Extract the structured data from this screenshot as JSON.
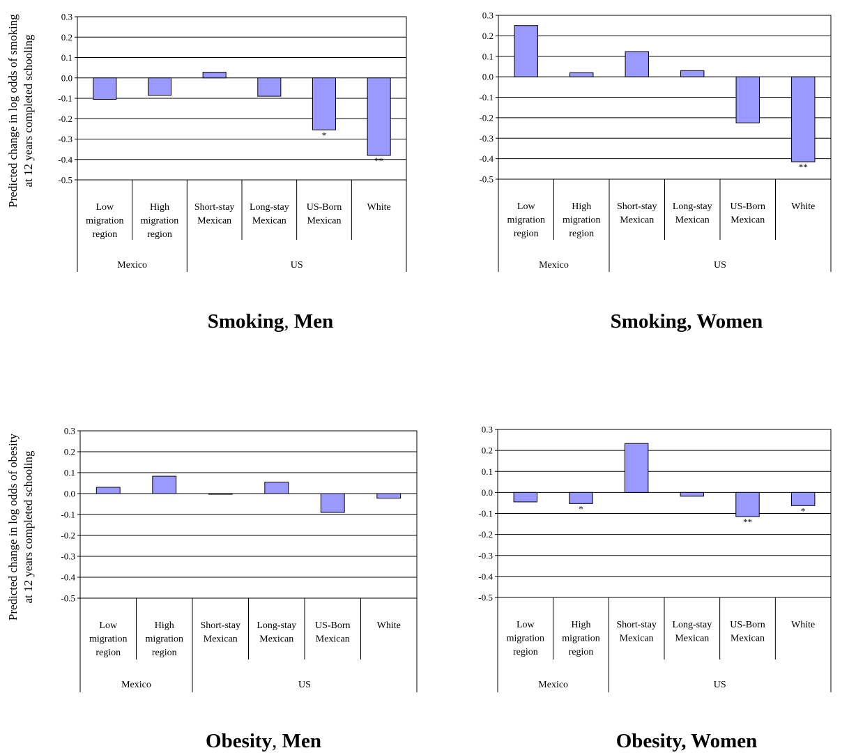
{
  "figure": {
    "bar_fill": "#9999ff",
    "bar_stroke": "#000000",
    "ylabels": {
      "smoking": [
        "Predicted change in log odds of smoking",
        "at 12 years completed schooling"
      ],
      "obesity": [
        "Predicted change in log odds of obesity",
        "at 12 years completed schooling"
      ]
    },
    "category_labels": [
      [
        "Low",
        "migration",
        "region"
      ],
      [
        "High",
        "migration",
        "region"
      ],
      [
        "Short-stay",
        "Mexican"
      ],
      [
        "Long-stay",
        "Mexican"
      ],
      [
        "US-Born",
        "Mexican"
      ],
      [
        "White"
      ]
    ],
    "groups": [
      {
        "label": "Mexico",
        "span": [
          0,
          2
        ]
      },
      {
        "label": "US",
        "span": [
          2,
          6
        ]
      }
    ]
  },
  "chart_data": [
    {
      "type": "bar",
      "title": "Smoking, Men",
      "categories": [
        "Low migration region",
        "High migration region",
        "Short-stay Mexican",
        "Long-stay Mexican",
        "US-Born Mexican",
        "White"
      ],
      "values": [
        -0.105,
        -0.085,
        0.028,
        -0.09,
        -0.255,
        -0.38
      ],
      "significance": [
        "",
        "",
        "",
        "",
        "*",
        "**"
      ],
      "ylim": [
        -0.5,
        0.3
      ],
      "yticks": [
        "0.3",
        "0.2",
        "0.1",
        "0.0",
        "-0.1",
        "-0.2",
        "-0.3",
        "-0.4",
        "-0.5"
      ],
      "ylabel": "Predicted change in log odds of smoking at 12 years completed schooling",
      "grid": true
    },
    {
      "type": "bar",
      "title": "Smoking, Women",
      "categories": [
        "Low migration region",
        "High migration region",
        "Short-stay Mexican",
        "Long-stay Mexican",
        "US-Born Mexican",
        "White"
      ],
      "values": [
        0.25,
        0.02,
        0.123,
        0.03,
        -0.225,
        -0.415
      ],
      "significance": [
        "",
        "",
        "",
        "",
        "",
        "**"
      ],
      "ylim": [
        -0.5,
        0.3
      ],
      "yticks": [
        "0.3",
        "0.2",
        "0.1",
        "0.0",
        "-0.1",
        "-0.2",
        "-0.3",
        "-0.4",
        "-0.5"
      ],
      "ylabel": "",
      "grid": true
    },
    {
      "type": "bar",
      "title": "Obesity, Men",
      "categories": [
        "Low migration region",
        "High migration region",
        "Short-stay Mexican",
        "Long-stay Mexican",
        "US-Born Mexican",
        "White"
      ],
      "values": [
        0.03,
        0.083,
        -0.003,
        0.055,
        -0.09,
        -0.022
      ],
      "significance": [
        "",
        "",
        "",
        "",
        "",
        ""
      ],
      "ylim": [
        -0.5,
        0.3
      ],
      "yticks": [
        "0.3",
        "0.2",
        "0.1",
        "0.0",
        "-0.1",
        "-0.2",
        "-0.3",
        "-0.4",
        "-0.5"
      ],
      "ylabel": "Predicted change in log odds of obesity at 12 years completed schooling",
      "grid": true
    },
    {
      "type": "bar",
      "title": "Obesity, Women",
      "categories": [
        "Low migration region",
        "High migration region",
        "Short-stay Mexican",
        "Long-stay Mexican",
        "US-Born Mexican",
        "White"
      ],
      "values": [
        -0.045,
        -0.053,
        0.233,
        -0.018,
        -0.115,
        -0.063
      ],
      "significance": [
        "",
        "*",
        "",
        "",
        "**",
        "*"
      ],
      "ylim": [
        -0.5,
        0.3
      ],
      "yticks": [
        "0.3",
        "0.2",
        "0.1",
        "0.0",
        "-0.1",
        "-0.2",
        "-0.3",
        "-0.4",
        "-0.5"
      ],
      "ylabel": "",
      "grid": true
    }
  ]
}
